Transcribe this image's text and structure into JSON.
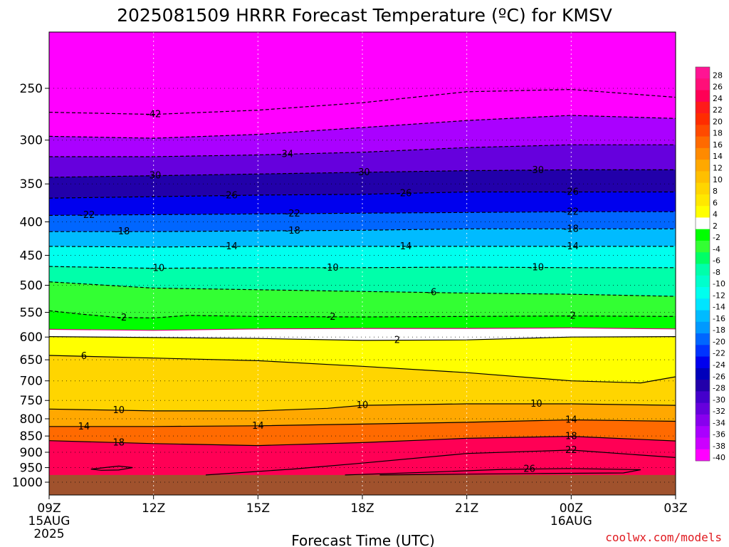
{
  "chart_data": {
    "type": "heatmap",
    "title": "2025081509 HRRR Forecast Temperature (ºC) for KMSV",
    "xlabel": "Forecast Time (UTC)",
    "credit": "coolwx.com/models",
    "x_ticks": [
      {
        "label": "09Z",
        "sub": [
          "15AUG",
          "2025"
        ]
      },
      {
        "label": "12Z",
        "sub": []
      },
      {
        "label": "15Z",
        "sub": []
      },
      {
        "label": "18Z",
        "sub": []
      },
      {
        "label": "21Z",
        "sub": []
      },
      {
        "label": "00Z",
        "sub": [
          "16AUG"
        ]
      },
      {
        "label": "03Z",
        "sub": []
      }
    ],
    "x_hours": [
      0,
      3,
      6,
      9,
      12,
      15,
      18
    ],
    "xlim": [
      0,
      18
    ],
    "y_ticks": [
      "250",
      "300",
      "350",
      "400",
      "450",
      "500",
      "550",
      "600",
      "650",
      "700",
      "750",
      "800",
      "850",
      "900",
      "950",
      "1000"
    ],
    "y_tick_values": [
      250,
      300,
      350,
      400,
      450,
      500,
      550,
      600,
      650,
      700,
      750,
      800,
      850,
      900,
      950,
      1000
    ],
    "ylim_hpa": [
      200,
      1000
    ],
    "ground_level_hpa": 975,
    "colorbar": {
      "ticks": [
        "28",
        "26",
        "24",
        "22",
        "20",
        "18",
        "16",
        "14",
        "12",
        "10",
        "8",
        "6",
        "4",
        "2",
        "-2",
        "-4",
        "-6",
        "-8",
        "-10",
        "-12",
        "-14",
        "-16",
        "-18",
        "-20",
        "-22",
        "-24",
        "-26",
        "-28",
        "-30",
        "-32",
        "-34",
        "-36",
        "-38",
        "-40"
      ],
      "colors": [
        "#ff1493",
        "#ff0f78",
        "#ff0055",
        "#ff1a1a",
        "#ff2c00",
        "#ff4a00",
        "#ff6a00",
        "#ff8a00",
        "#ffa800",
        "#ffbf00",
        "#ffd500",
        "#ffe800",
        "#ffff00",
        "#ffffff",
        "#00ff00",
        "#33ff33",
        "#00ff66",
        "#00ffaa",
        "#00ffcc",
        "#00ffee",
        "#00e5ff",
        "#00bbff",
        "#0099ff",
        "#0066ff",
        "#0033ff",
        "#0000ee",
        "#0000bb",
        "#2200aa",
        "#4400cc",
        "#6600dd",
        "#8800ee",
        "#aa00ff",
        "#cc00ff",
        "#ff00ff"
      ]
    },
    "contours": [
      {
        "value": -42,
        "label": "-42",
        "style": "dashed",
        "points": [
          [
            0,
            272
          ],
          [
            3,
            274
          ],
          [
            6,
            270
          ],
          [
            9,
            263
          ],
          [
            12,
            253
          ],
          [
            15,
            251
          ],
          [
            18,
            258
          ]
        ],
        "labels_at": [
          3
        ]
      },
      {
        "value": -38,
        "label": "",
        "style": "dashed",
        "points": [
          [
            0,
            296
          ],
          [
            3,
            298
          ],
          [
            6,
            294
          ],
          [
            9,
            287
          ],
          [
            12,
            280
          ],
          [
            15,
            275
          ],
          [
            18,
            278
          ]
        ],
        "labels_at": []
      },
      {
        "value": -34,
        "label": "-34",
        "style": "dashed",
        "points": [
          [
            0,
            318
          ],
          [
            3,
            318
          ],
          [
            6,
            316
          ],
          [
            9,
            313
          ],
          [
            12,
            308
          ],
          [
            15,
            305
          ],
          [
            18,
            305
          ]
        ],
        "labels_at": [
          6.8
        ]
      },
      {
        "value": -30,
        "label": "-30",
        "style": "dashed",
        "points": [
          [
            0,
            342
          ],
          [
            3,
            340
          ],
          [
            6,
            338
          ],
          [
            9,
            336
          ],
          [
            12,
            334
          ],
          [
            15,
            333
          ],
          [
            18,
            333
          ]
        ],
        "labels_at": [
          3,
          9,
          14
        ]
      },
      {
        "value": -26,
        "label": "-26",
        "style": "dashed",
        "points": [
          [
            0,
            368
          ],
          [
            3,
            366
          ],
          [
            6,
            364
          ],
          [
            9,
            363
          ],
          [
            12,
            360
          ],
          [
            15,
            360
          ],
          [
            18,
            360
          ]
        ],
        "labels_at": [
          5.2,
          10.2,
          15
        ]
      },
      {
        "value": -22,
        "label": "-22",
        "style": "dashed",
        "points": [
          [
            0,
            391
          ],
          [
            3,
            390
          ],
          [
            6,
            389
          ],
          [
            9,
            388
          ],
          [
            12,
            387
          ],
          [
            15,
            386
          ],
          [
            18,
            386
          ]
        ],
        "labels_at": [
          1.1,
          7,
          15
        ]
      },
      {
        "value": -18,
        "label": "-18",
        "style": "dashed",
        "points": [
          [
            0,
            414
          ],
          [
            3,
            414
          ],
          [
            6,
            413
          ],
          [
            9,
            412
          ],
          [
            12,
            410
          ],
          [
            15,
            410
          ],
          [
            18,
            410
          ]
        ],
        "labels_at": [
          2.1,
          7,
          15
        ]
      },
      {
        "value": -14,
        "label": "-14",
        "style": "dashed",
        "points": [
          [
            0,
            436
          ],
          [
            3,
            437
          ],
          [
            6,
            436
          ],
          [
            9,
            436
          ],
          [
            12,
            436
          ],
          [
            15,
            436
          ],
          [
            18,
            436
          ]
        ],
        "labels_at": [
          5.2,
          10.2,
          15
        ]
      },
      {
        "value": -10,
        "label": "-10",
        "style": "dashed",
        "points": [
          [
            0,
            468
          ],
          [
            3,
            471
          ],
          [
            6,
            470
          ],
          [
            9,
            470
          ],
          [
            12,
            469
          ],
          [
            15,
            470
          ],
          [
            18,
            470
          ]
        ],
        "labels_at": [
          3.1,
          8.1,
          14
        ]
      },
      {
        "value": -6,
        "label": "-6",
        "style": "dashed",
        "points": [
          [
            0,
            494
          ],
          [
            3,
            505
          ],
          [
            6,
            508
          ],
          [
            9,
            511
          ],
          [
            12,
            514
          ],
          [
            15,
            516
          ],
          [
            18,
            520
          ]
        ],
        "labels_at": [
          11
        ]
      },
      {
        "value": -2,
        "label": "-2",
        "style": "dashed",
        "points": [
          [
            0,
            547
          ],
          [
            1,
            554
          ],
          [
            2,
            560
          ],
          [
            3,
            561
          ],
          [
            4,
            556
          ],
          [
            6,
            558
          ],
          [
            9,
            559
          ],
          [
            12,
            558
          ],
          [
            15,
            557
          ],
          [
            18,
            558
          ]
        ],
        "labels_at": [
          2.1,
          8.1,
          15
        ]
      },
      {
        "value": 0,
        "label": "",
        "style": "solid-magenta",
        "points": [
          [
            0,
            584
          ],
          [
            3,
            586
          ],
          [
            6,
            583
          ],
          [
            9,
            582
          ],
          [
            12,
            582
          ],
          [
            15,
            581
          ],
          [
            18,
            583
          ]
        ],
        "labels_at": []
      },
      {
        "value": 2,
        "label": "2",
        "style": "solid",
        "points": [
          [
            0,
            599
          ],
          [
            3,
            601
          ],
          [
            6,
            603
          ],
          [
            9,
            607
          ],
          [
            12,
            606
          ],
          [
            15,
            600
          ],
          [
            18,
            599
          ]
        ],
        "labels_at": [
          10
        ]
      },
      {
        "value": 6,
        "label": "6",
        "style": "solid",
        "points": [
          [
            0,
            640
          ],
          [
            3,
            646
          ],
          [
            6,
            652
          ],
          [
            9,
            665
          ],
          [
            12,
            680
          ],
          [
            15,
            700
          ],
          [
            17,
            705
          ],
          [
            18,
            690
          ]
        ],
        "labels_at": [
          1
        ]
      },
      {
        "value": 10,
        "label": "10",
        "style": "solid",
        "points": [
          [
            0,
            773
          ],
          [
            3,
            778
          ],
          [
            6,
            778
          ],
          [
            8,
            771
          ],
          [
            9,
            763
          ],
          [
            12,
            759
          ],
          [
            15,
            759
          ],
          [
            18,
            763
          ]
        ],
        "labels_at": [
          2,
          9,
          14
        ]
      },
      {
        "value": 14,
        "label": "14",
        "style": "solid",
        "points": [
          [
            0,
            822
          ],
          [
            3,
            822
          ],
          [
            6,
            820
          ],
          [
            9,
            815
          ],
          [
            12,
            810
          ],
          [
            15,
            803
          ],
          [
            18,
            807
          ]
        ],
        "labels_at": [
          1,
          6,
          15
        ]
      },
      {
        "value": 18,
        "label": "18",
        "style": "solid",
        "points": [
          [
            0,
            864
          ],
          [
            3,
            873
          ],
          [
            6,
            879
          ],
          [
            9,
            870
          ],
          [
            12,
            857
          ],
          [
            15,
            851
          ],
          [
            18,
            865
          ]
        ],
        "labels_at": [
          2,
          15
        ]
      },
      {
        "value": 22,
        "label": "22",
        "style": "solid",
        "points": [
          [
            4.5,
            975
          ],
          [
            7,
            955
          ],
          [
            9,
            935
          ],
          [
            12,
            904
          ],
          [
            15,
            893
          ],
          [
            18,
            917
          ]
        ],
        "labels_at": [
          15
        ]
      },
      {
        "value": 26,
        "label": "26",
        "style": "solid",
        "points": [
          [
            8.5,
            975
          ],
          [
            11,
            965
          ],
          [
            13,
            956
          ],
          [
            15,
            953
          ],
          [
            17,
            957
          ],
          [
            16.5,
            968
          ],
          [
            14,
            970
          ],
          [
            12,
            972
          ],
          [
            9.5,
            975
          ]
        ],
        "labels_at": [
          13.8
        ]
      },
      {
        "value": 26,
        "label": "",
        "style": "solid",
        "points": [
          [
            1.2,
            955
          ],
          [
            2,
            945
          ],
          [
            2.4,
            950
          ],
          [
            2,
            958
          ],
          [
            1.5,
            959
          ],
          [
            1.2,
            955
          ]
        ],
        "labels_at": []
      }
    ]
  }
}
